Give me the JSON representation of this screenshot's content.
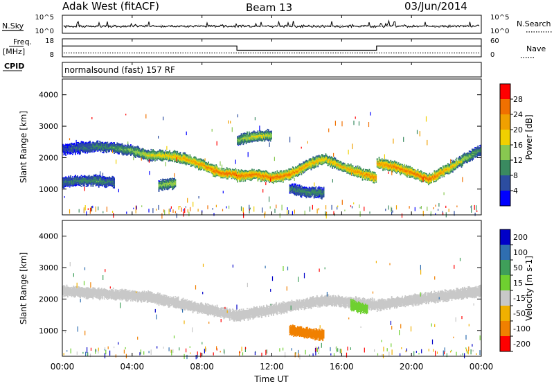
{
  "header": {
    "station": "Adak West (fitACF)",
    "beam": "Beam 13",
    "date": "03/Jun/2014"
  },
  "labels": {
    "nsky": "N.Sky",
    "nsearch": "N.Search",
    "freq_top": "Freq.",
    "freq_unit": "[MHz]",
    "nave": "Nave",
    "cpid": "CPID",
    "program": "normalsound (fast) 157 RF",
    "xlabel": "Time UT"
  },
  "chart_data": [
    {
      "type": "line",
      "panel": "noise",
      "left_ticks": [
        "10^5",
        "10^0"
      ],
      "right_ticks": [
        "10^5",
        "10^0"
      ],
      "series": [
        {
          "name": "N.Sky"
        },
        {
          "name": "N.Search"
        }
      ]
    },
    {
      "type": "line",
      "panel": "frequency-nave",
      "left_ticks": [
        "18",
        "8"
      ],
      "right_ticks": [
        "60",
        "0"
      ],
      "freq_segments": [
        {
          "start_hour": 0.0,
          "end_hour": 10.0,
          "freq_mhz": 14.2
        },
        {
          "start_hour": 10.0,
          "end_hour": 18.0,
          "freq_mhz": 11.4
        },
        {
          "start_hour": 18.0,
          "end_hour": 24.0,
          "freq_mhz": 14.2
        }
      ],
      "nave": 10
    },
    {
      "type": "heatmap",
      "panel": "power",
      "ylabel": "Slant Range [km]",
      "ylim": [
        180,
        4500
      ],
      "yticks": [
        1000,
        2000,
        3000,
        4000
      ],
      "colorbar_label": "Power [dB]",
      "colorbar_ticks": [
        "4",
        "8",
        "12",
        "16",
        "20",
        "24",
        "28"
      ],
      "colorbar_range": [
        0,
        32
      ],
      "colors": [
        "#0000ff",
        "#2c4da0",
        "#3a8a60",
        "#88c850",
        "#f0d000",
        "#f0a000",
        "#f07000",
        "#ff0000"
      ],
      "echo_bands": [
        {
          "hours": [
            0,
            1,
            2,
            3,
            4,
            5,
            6,
            7,
            8,
            9,
            10
          ],
          "range_km": [
            2250,
            2300,
            2350,
            2300,
            2200,
            2050,
            2050,
            1950,
            1750,
            1500,
            1450
          ],
          "power_db": [
            6,
            8,
            10,
            11,
            14,
            18,
            20,
            22,
            24,
            27,
            28
          ]
        },
        {
          "hours": [
            10,
            11,
            12,
            13,
            14,
            15,
            16,
            17,
            18
          ],
          "range_km": [
            1400,
            1450,
            1350,
            1450,
            1750,
            1950,
            1700,
            1500,
            1350
          ],
          "power_db": [
            26,
            26,
            27,
            26,
            22,
            20,
            22,
            24,
            26
          ]
        },
        {
          "hours": [
            18,
            19,
            20,
            21,
            22,
            23,
            24
          ],
          "range_km": [
            1800,
            1700,
            1500,
            1300,
            1600,
            1950,
            2250
          ],
          "power_db": [
            24,
            26,
            26,
            28,
            22,
            16,
            10
          ]
        },
        {
          "hours": [
            0,
            1,
            2,
            3
          ],
          "range_km": [
            1200,
            1250,
            1250,
            1200
          ],
          "power_db": [
            9,
            10,
            11,
            9
          ]
        },
        {
          "hours": [
            5.5,
            6.5
          ],
          "range_km": [
            1100,
            1200
          ],
          "power_db": [
            14,
            16
          ]
        },
        {
          "hours": [
            10,
            11,
            12
          ],
          "range_km": [
            2550,
            2650,
            2700
          ],
          "power_db": [
            14,
            18,
            16
          ]
        },
        {
          "hours": [
            13,
            14,
            15
          ],
          "range_km": [
            1000,
            900,
            850
          ],
          "power_db": [
            9,
            11,
            10
          ]
        }
      ]
    },
    {
      "type": "heatmap",
      "panel": "velocity",
      "ylabel": "Slant Range [km]",
      "ylim": [
        180,
        4500
      ],
      "yticks": [
        1000,
        2000,
        3000,
        4000
      ],
      "colorbar_label": "Velocity [m s-1]",
      "colorbar_ticks": [
        "200",
        "100",
        "50",
        "15",
        "-15",
        "-50",
        "-100",
        "-200"
      ],
      "colors": [
        "#0000c8",
        "#2f6eb0",
        "#3f9f5a",
        "#6fd030",
        "#c8c8c8",
        "#f0b000",
        "#f08000",
        "#ff0000"
      ],
      "ground_color": "#c8c8c8",
      "echo_bands": [
        {
          "hours": [
            0,
            5,
            10,
            15,
            18,
            24
          ],
          "range_km": [
            2250,
            2050,
            1450,
            1950,
            1800,
            2250
          ],
          "velocity": -5
        },
        {
          "hours": [
            13,
            14,
            15
          ],
          "range_km": [
            1000,
            900,
            850
          ],
          "velocity": -60
        },
        {
          "hours": [
            16.5,
            17.5
          ],
          "range_km": [
            1800,
            1650
          ],
          "velocity": 40
        }
      ]
    }
  ],
  "xaxis": {
    "ticks": [
      "00:00",
      "04:00",
      "08:00",
      "12:00",
      "16:00",
      "20:00",
      "00:00"
    ],
    "tick_hours": [
      0,
      4,
      8,
      12,
      16,
      20,
      24
    ],
    "range_hours": [
      0,
      24
    ]
  }
}
